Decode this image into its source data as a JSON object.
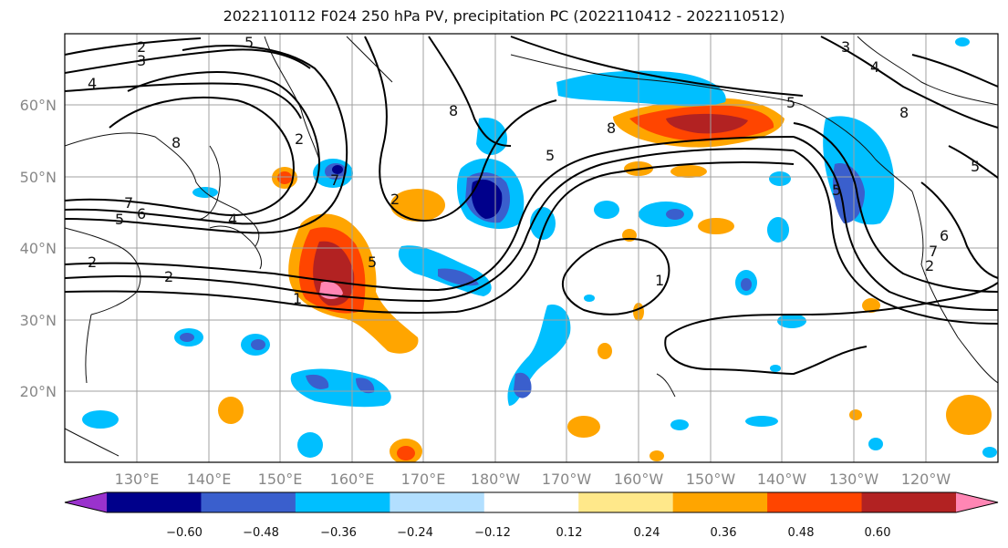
{
  "title": "2022110112 F024 250 hPa PV, precipitation PC (2022110412 - 2022110512)",
  "latitude_labels": [
    "60°N",
    "50°N",
    "40°N",
    "30°N",
    "20°N"
  ],
  "longitude_labels": [
    "130°E",
    "140°E",
    "150°E",
    "160°E",
    "170°E",
    "180°W",
    "170°W",
    "160°W",
    "150°W",
    "140°W",
    "130°W",
    "120°W"
  ],
  "colorbar": {
    "tick_labels": [
      "−0.60",
      "−0.48",
      "−0.36",
      "−0.24",
      "−0.12",
      "0.12",
      "0.24",
      "0.36",
      "0.48",
      "0.60"
    ],
    "colors": [
      "#9a32cd",
      "#00008b",
      "#3a5fcd",
      "#00bfff",
      "#b2dfff",
      "#ffffff",
      "#ffe88a",
      "#ffa500",
      "#ff4500",
      "#b22222",
      "#ff86b4"
    ]
  },
  "contour_labels": [
    "2",
    "3",
    "5",
    "4",
    "8",
    "8",
    "7",
    "5",
    "6",
    "2",
    "4",
    "2",
    "2",
    "7",
    "2",
    "5",
    "1",
    "5",
    "8",
    "5",
    "3",
    "4",
    "8",
    "5",
    "6",
    "7",
    "1",
    "2",
    "5"
  ]
}
